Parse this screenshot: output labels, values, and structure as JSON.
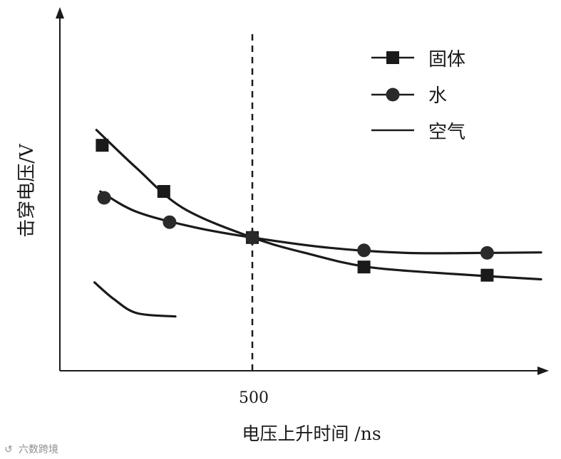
{
  "chart_data": {
    "type": "line",
    "title": "",
    "xlabel": "电压上升时间 /ns",
    "ylabel": "击穿电压/V",
    "x_ticks": [
      "500"
    ],
    "reference_line_x": 500,
    "legend_position": "top-right",
    "grid": false,
    "series": [
      {
        "name": "固体",
        "marker": "square",
        "points": [
          [
            110,
            880
          ],
          [
            270,
            700
          ],
          [
            500,
            520
          ],
          [
            790,
            405
          ],
          [
            1110,
            373
          ]
        ],
        "curve": [
          [
            95,
            940
          ],
          [
            200,
            790
          ],
          [
            320,
            635
          ],
          [
            500,
            520
          ],
          [
            650,
            455
          ],
          [
            800,
            405
          ],
          [
            1000,
            380
          ],
          [
            1250,
            357
          ]
        ]
      },
      {
        "name": "水",
        "marker": "circle",
        "points": [
          [
            115,
            675
          ],
          [
            285,
            580
          ],
          [
            500,
            520
          ],
          [
            790,
            470
          ],
          [
            1110,
            460
          ]
        ],
        "curve": [
          [
            105,
            700
          ],
          [
            200,
            620
          ],
          [
            350,
            560
          ],
          [
            500,
            520
          ],
          [
            700,
            480
          ],
          [
            900,
            460
          ],
          [
            1100,
            460
          ],
          [
            1250,
            462
          ]
        ]
      },
      {
        "name": "空气",
        "marker": "none",
        "points": [],
        "curve": [
          [
            90,
            345
          ],
          [
            140,
            280
          ],
          [
            200,
            225
          ],
          [
            300,
            212
          ]
        ]
      }
    ]
  },
  "watermark": "六数跨境"
}
